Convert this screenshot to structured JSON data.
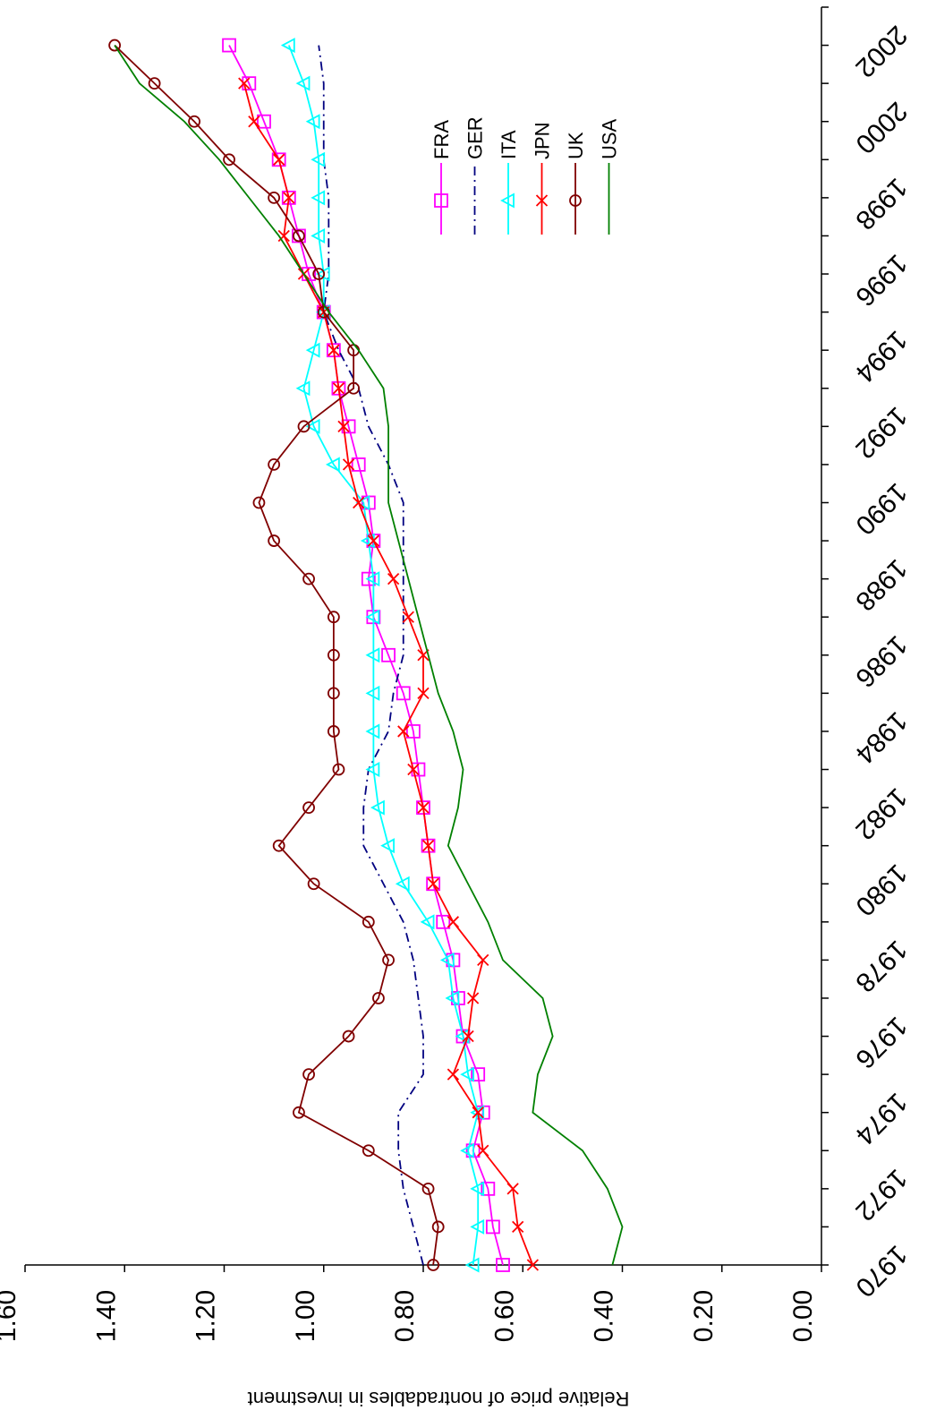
{
  "chart_data": {
    "type": "line",
    "ylabel": "Relative price of nontradables in investment",
    "xlabel": "",
    "xlim": [
      1970,
      2003
    ],
    "ylim": [
      0,
      1.6
    ],
    "x_ticks": [
      1970,
      1972,
      1974,
      1976,
      1978,
      1980,
      1982,
      1984,
      1986,
      1988,
      1990,
      1992,
      1994,
      1996,
      1998,
      2000,
      2002
    ],
    "y_ticks": [
      0.0,
      0.2,
      0.4,
      0.6,
      0.8,
      1.0,
      1.2,
      1.4,
      1.6
    ],
    "y_tick_labels": [
      "0.00",
      "0.20",
      "0.40",
      "0.60",
      "0.80",
      "1.00",
      "1.20",
      "1.40",
      "1.60"
    ],
    "x": [
      1970,
      1971,
      1972,
      1973,
      1974,
      1975,
      1976,
      1977,
      1978,
      1979,
      1980,
      1981,
      1982,
      1983,
      1984,
      1985,
      1986,
      1987,
      1988,
      1989,
      1990,
      1991,
      1992,
      1993,
      1994,
      1995,
      1996,
      1997,
      1998,
      1999,
      2000,
      2001,
      2002,
      2003
    ],
    "series": [
      {
        "name": "FRA",
        "color": "#ff00ff",
        "marker": "square",
        "dash": "solid",
        "values": [
          0.64,
          0.66,
          0.67,
          0.7,
          0.68,
          0.69,
          0.72,
          0.73,
          0.74,
          0.76,
          0.78,
          0.79,
          0.8,
          0.81,
          0.82,
          0.84,
          0.87,
          0.9,
          0.91,
          0.9,
          0.91,
          0.93,
          0.95,
          0.97,
          0.98,
          1.0,
          1.03,
          1.05,
          1.07,
          1.09,
          1.12,
          1.15,
          1.19,
          null
        ]
      },
      {
        "name": "GER",
        "color": "#000080",
        "marker": "none",
        "dash": "dashdot",
        "values": [
          0.8,
          0.82,
          0.84,
          0.85,
          0.85,
          0.8,
          0.8,
          0.81,
          0.82,
          0.84,
          0.88,
          0.92,
          0.92,
          0.91,
          0.87,
          0.86,
          0.84,
          0.84,
          0.84,
          0.84,
          0.84,
          0.87,
          0.91,
          0.93,
          0.97,
          1.0,
          0.99,
          0.99,
          0.99,
          1.0,
          1.0,
          1.0,
          1.01,
          null
        ]
      },
      {
        "name": "ITA",
        "color": "#00ffff",
        "marker": "triangle",
        "dash": "solid",
        "values": [
          0.7,
          0.69,
          0.69,
          0.71,
          0.69,
          0.71,
          0.72,
          0.74,
          0.75,
          0.79,
          0.84,
          0.87,
          0.89,
          0.9,
          0.9,
          0.9,
          0.9,
          0.9,
          0.9,
          0.91,
          0.92,
          0.98,
          1.02,
          1.04,
          1.02,
          1.0,
          1.0,
          1.01,
          1.01,
          1.01,
          1.02,
          1.04,
          1.07,
          null
        ]
      },
      {
        "name": "JPN",
        "color": "#ff0000",
        "marker": "x",
        "dash": "solid",
        "values": [
          0.58,
          0.61,
          0.62,
          0.68,
          0.69,
          0.74,
          0.71,
          0.7,
          0.68,
          0.74,
          0.78,
          0.79,
          0.8,
          0.82,
          0.84,
          0.8,
          0.8,
          0.83,
          0.86,
          0.9,
          0.93,
          0.95,
          0.96,
          0.97,
          0.98,
          1.0,
          1.04,
          1.08,
          1.07,
          1.09,
          1.14,
          1.16,
          null,
          null
        ]
      },
      {
        "name": "UK",
        "color": "#800000",
        "marker": "circle",
        "dash": "solid",
        "values": [
          0.78,
          0.77,
          0.79,
          0.91,
          1.05,
          1.03,
          0.95,
          0.89,
          0.87,
          0.91,
          1.02,
          1.09,
          1.03,
          0.97,
          0.98,
          0.98,
          0.98,
          0.98,
          1.03,
          1.1,
          1.13,
          1.1,
          1.04,
          0.94,
          0.94,
          1.0,
          1.01,
          1.05,
          1.1,
          1.19,
          1.26,
          1.34,
          1.42,
          null
        ]
      },
      {
        "name": "USA",
        "color": "#008000",
        "marker": "none",
        "dash": "solid",
        "values": [
          0.42,
          0.4,
          0.43,
          0.48,
          0.58,
          0.57,
          0.54,
          0.56,
          0.64,
          0.67,
          0.71,
          0.75,
          0.73,
          0.72,
          0.74,
          0.77,
          0.79,
          0.81,
          0.83,
          0.85,
          0.87,
          0.87,
          0.87,
          0.88,
          0.93,
          0.99,
          1.04,
          1.09,
          1.15,
          1.21,
          1.28,
          1.37,
          1.42,
          null
        ]
      }
    ],
    "legend": [
      "FRA",
      "GER",
      "ITA",
      "JPN",
      "UK",
      "USA"
    ],
    "legend_position": "top-right",
    "grid": false,
    "orientation": "rotated-90-clockwise"
  }
}
